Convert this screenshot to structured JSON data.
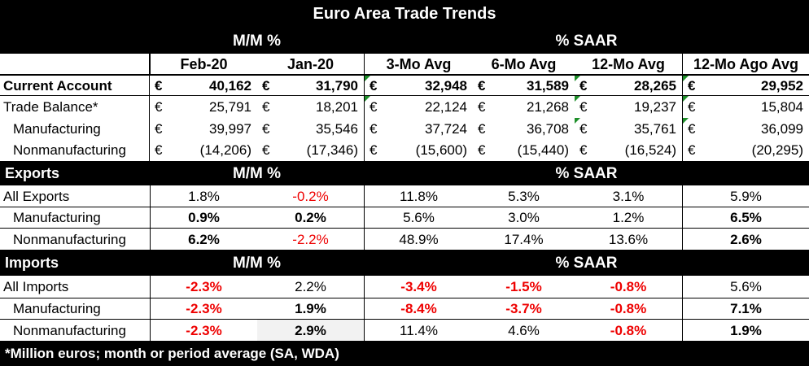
{
  "title": "Euro Area Trade Trends",
  "sections": {
    "mm": "M/M %",
    "saar": "% SAAR"
  },
  "columns": [
    "Feb-20",
    "Jan-20",
    "3-Mo Avg",
    "6-Mo Avg",
    "12-Mo Avg",
    "12-Mo Ago Avg"
  ],
  "currency": "€",
  "balance_rows": [
    {
      "label": "Current Account",
      "bold": true,
      "indent": false,
      "values": [
        "40,162",
        "31,790",
        "32,948",
        "31,589",
        "28,265",
        "29,952"
      ]
    },
    {
      "label": "Trade Balance*",
      "bold": false,
      "indent": false,
      "values": [
        "25,791",
        "18,201",
        "22,124",
        "21,268",
        "19,237",
        "15,804"
      ]
    },
    {
      "label": "Manufacturing",
      "bold": false,
      "indent": true,
      "values": [
        "39,997",
        "35,546",
        "37,724",
        "36,708",
        "35,761",
        "36,099"
      ]
    },
    {
      "label": "Nonmanufacturing",
      "bold": false,
      "indent": true,
      "values": [
        "(14,206)",
        "(17,346)",
        "(15,600)",
        "(15,440)",
        "(16,524)",
        "(20,295)"
      ]
    }
  ],
  "exports": {
    "label": "Exports",
    "rows": [
      {
        "label": "All Exports",
        "indent": false,
        "values": [
          "1.8%",
          "-0.2%",
          "11.8%",
          "5.3%",
          "3.1%",
          "5.9%"
        ]
      },
      {
        "label": "Manufacturing",
        "indent": true,
        "values": [
          "0.9%",
          "0.2%",
          "5.6%",
          "3.0%",
          "1.2%",
          "6.5%"
        ]
      },
      {
        "label": "Nonmanufacturing",
        "indent": true,
        "values": [
          "6.2%",
          "-2.2%",
          "48.9%",
          "17.4%",
          "13.6%",
          "2.6%"
        ]
      }
    ]
  },
  "imports": {
    "label": "Imports",
    "rows": [
      {
        "label": "All Imports",
        "indent": false,
        "values": [
          "-2.3%",
          "2.2%",
          "-3.4%",
          "-1.5%",
          "-0.8%",
          "5.6%"
        ]
      },
      {
        "label": "Manufacturing",
        "indent": true,
        "values": [
          "-2.3%",
          "1.9%",
          "-8.4%",
          "-3.7%",
          "-0.8%",
          "7.1%"
        ]
      },
      {
        "label": "Nonmanufacturing",
        "indent": true,
        "values": [
          "-2.3%",
          "2.9%",
          "11.4%",
          "4.6%",
          "-0.8%",
          "1.9%"
        ]
      }
    ]
  },
  "bold_cells": [
    [
      false,
      false,
      false,
      false,
      false,
      false
    ],
    [
      true,
      true,
      false,
      false,
      false,
      true
    ],
    [
      true,
      false,
      false,
      false,
      false,
      true
    ],
    [
      true,
      false,
      true,
      true,
      true,
      false
    ],
    [
      true,
      true,
      true,
      true,
      true,
      true
    ],
    [
      true,
      true,
      false,
      false,
      true,
      true
    ]
  ],
  "red_color": "#ee0000",
  "footnote": "*Million euros; month or period average (SA, WDA)"
}
